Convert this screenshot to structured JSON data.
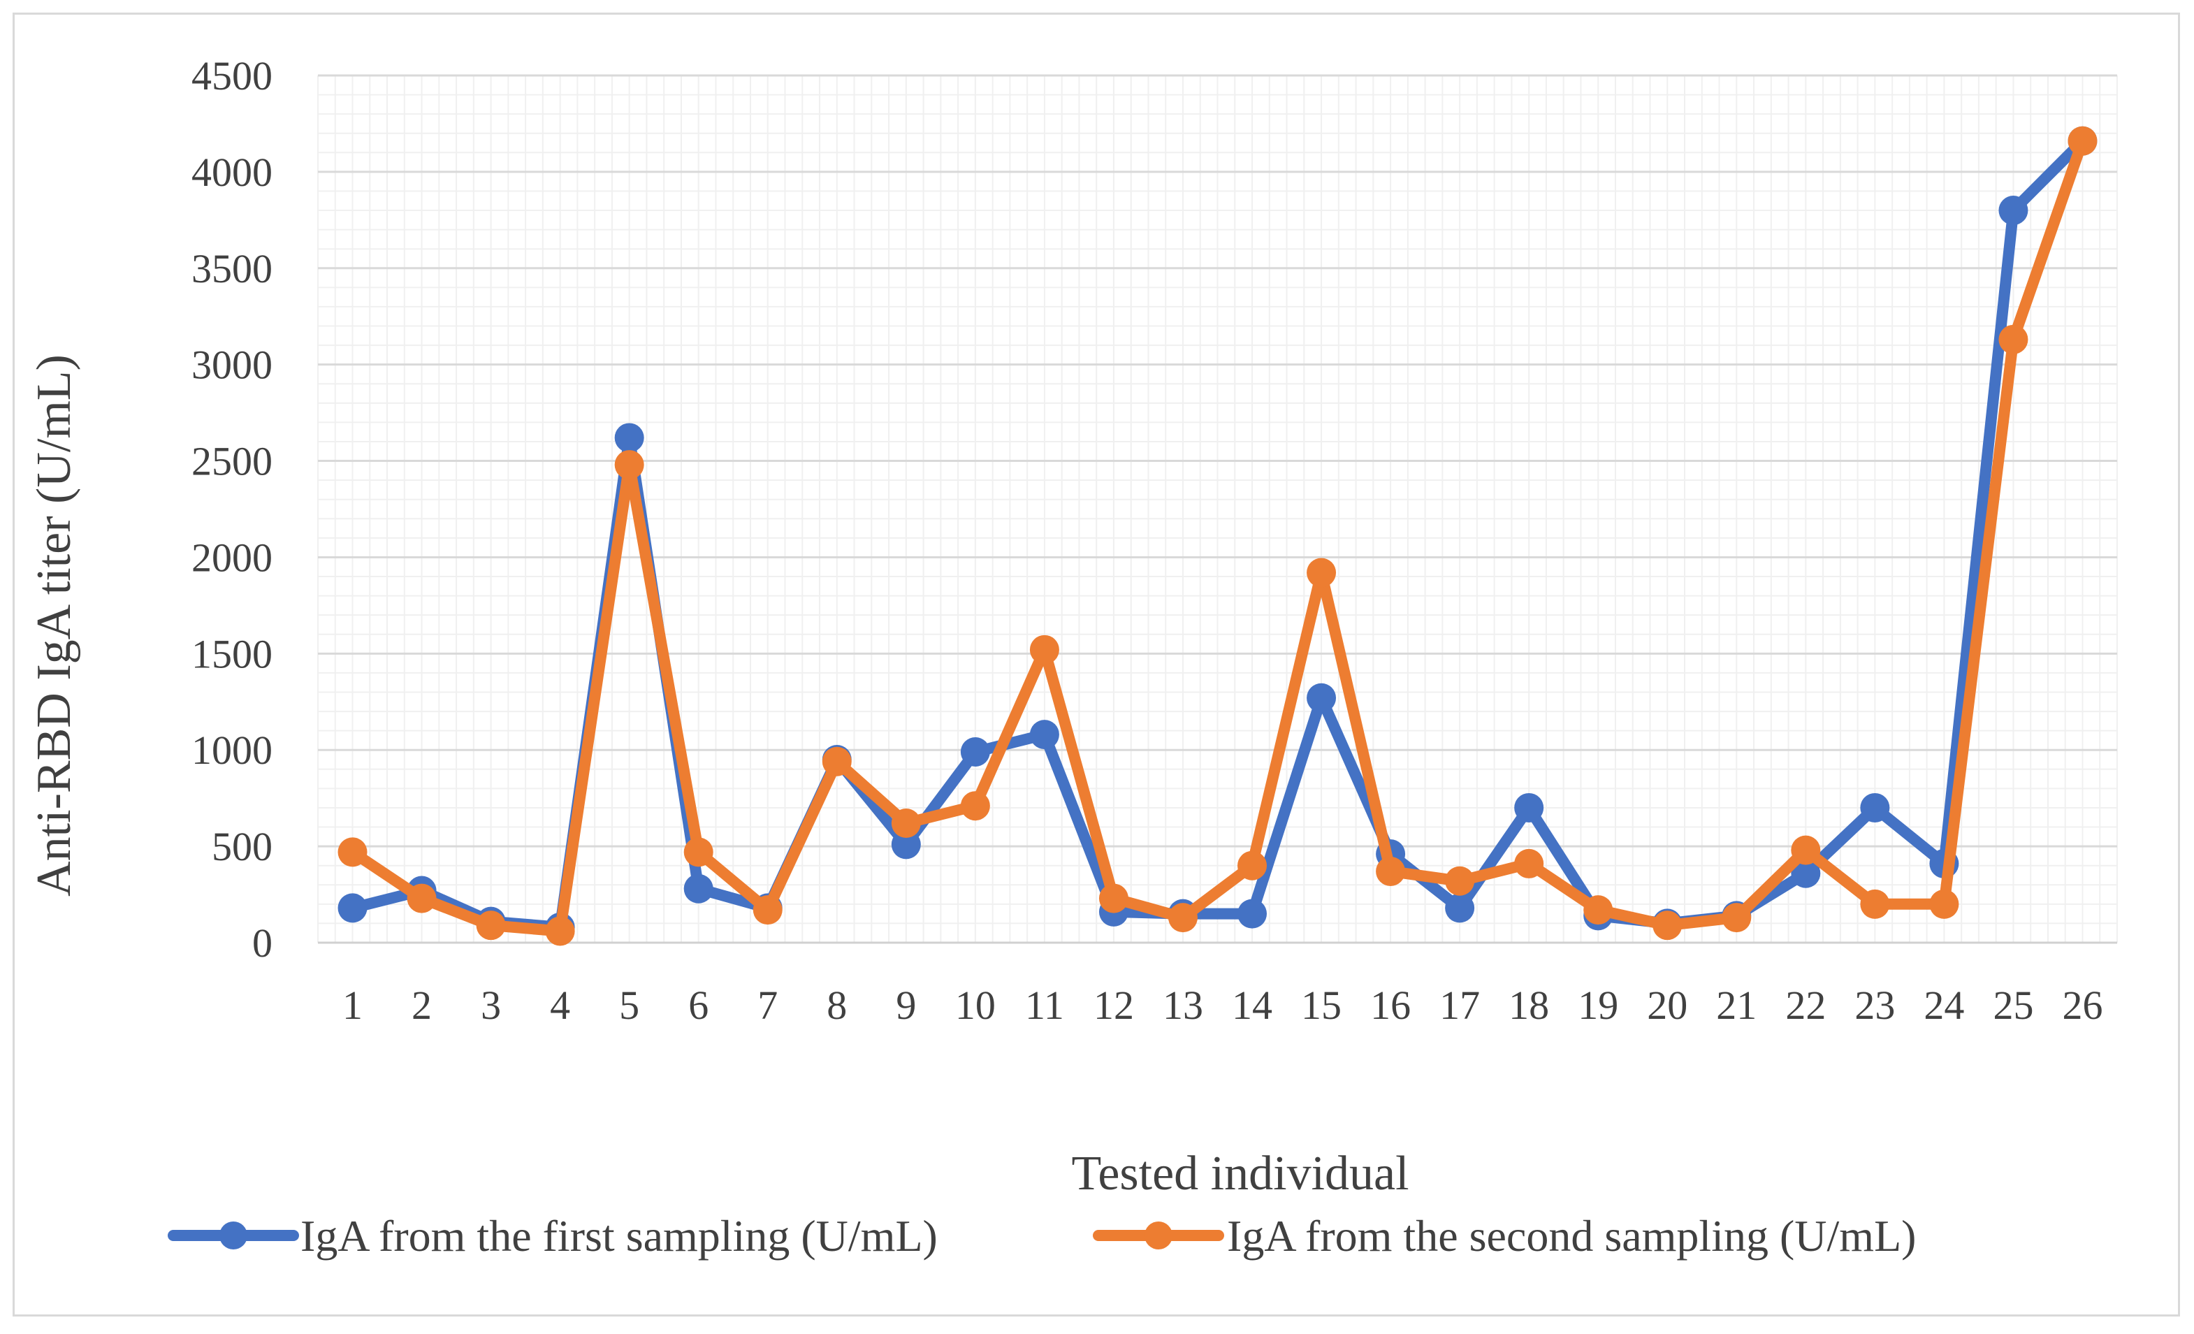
{
  "chart_data": {
    "type": "line",
    "title": "",
    "xlabel": "Tested individual",
    "ylabel": "Anti-RBD IgA titer (U/mL)",
    "ylim": [
      0,
      4500
    ],
    "yticks": [
      0,
      500,
      1000,
      1500,
      2000,
      2500,
      3000,
      3500,
      4000,
      4500
    ],
    "categories": [
      "1",
      "2",
      "3",
      "4",
      "5",
      "6",
      "7",
      "8",
      "9",
      "10",
      "11",
      "12",
      "13",
      "14",
      "15",
      "16",
      "17",
      "18",
      "19",
      "20",
      "21",
      "22",
      "23",
      "24",
      "25",
      "26"
    ],
    "grid": true,
    "legend_position": "bottom",
    "series": [
      {
        "name": "IgA from the first sampling (U/mL)",
        "color": "#4472c4",
        "values": [
          180,
          270,
          110,
          80,
          2620,
          280,
          180,
          950,
          510,
          990,
          1080,
          160,
          150,
          150,
          1270,
          460,
          180,
          700,
          140,
          100,
          140,
          360,
          700,
          410,
          3800,
          4160
        ]
      },
      {
        "name": "IgA from the second sampling (U/mL)",
        "color": "#ed7d31",
        "values": [
          470,
          230,
          90,
          60,
          2480,
          470,
          170,
          940,
          620,
          710,
          1520,
          230,
          130,
          400,
          1920,
          370,
          320,
          410,
          170,
          90,
          130,
          480,
          200,
          200,
          3130,
          4160
        ]
      }
    ]
  }
}
